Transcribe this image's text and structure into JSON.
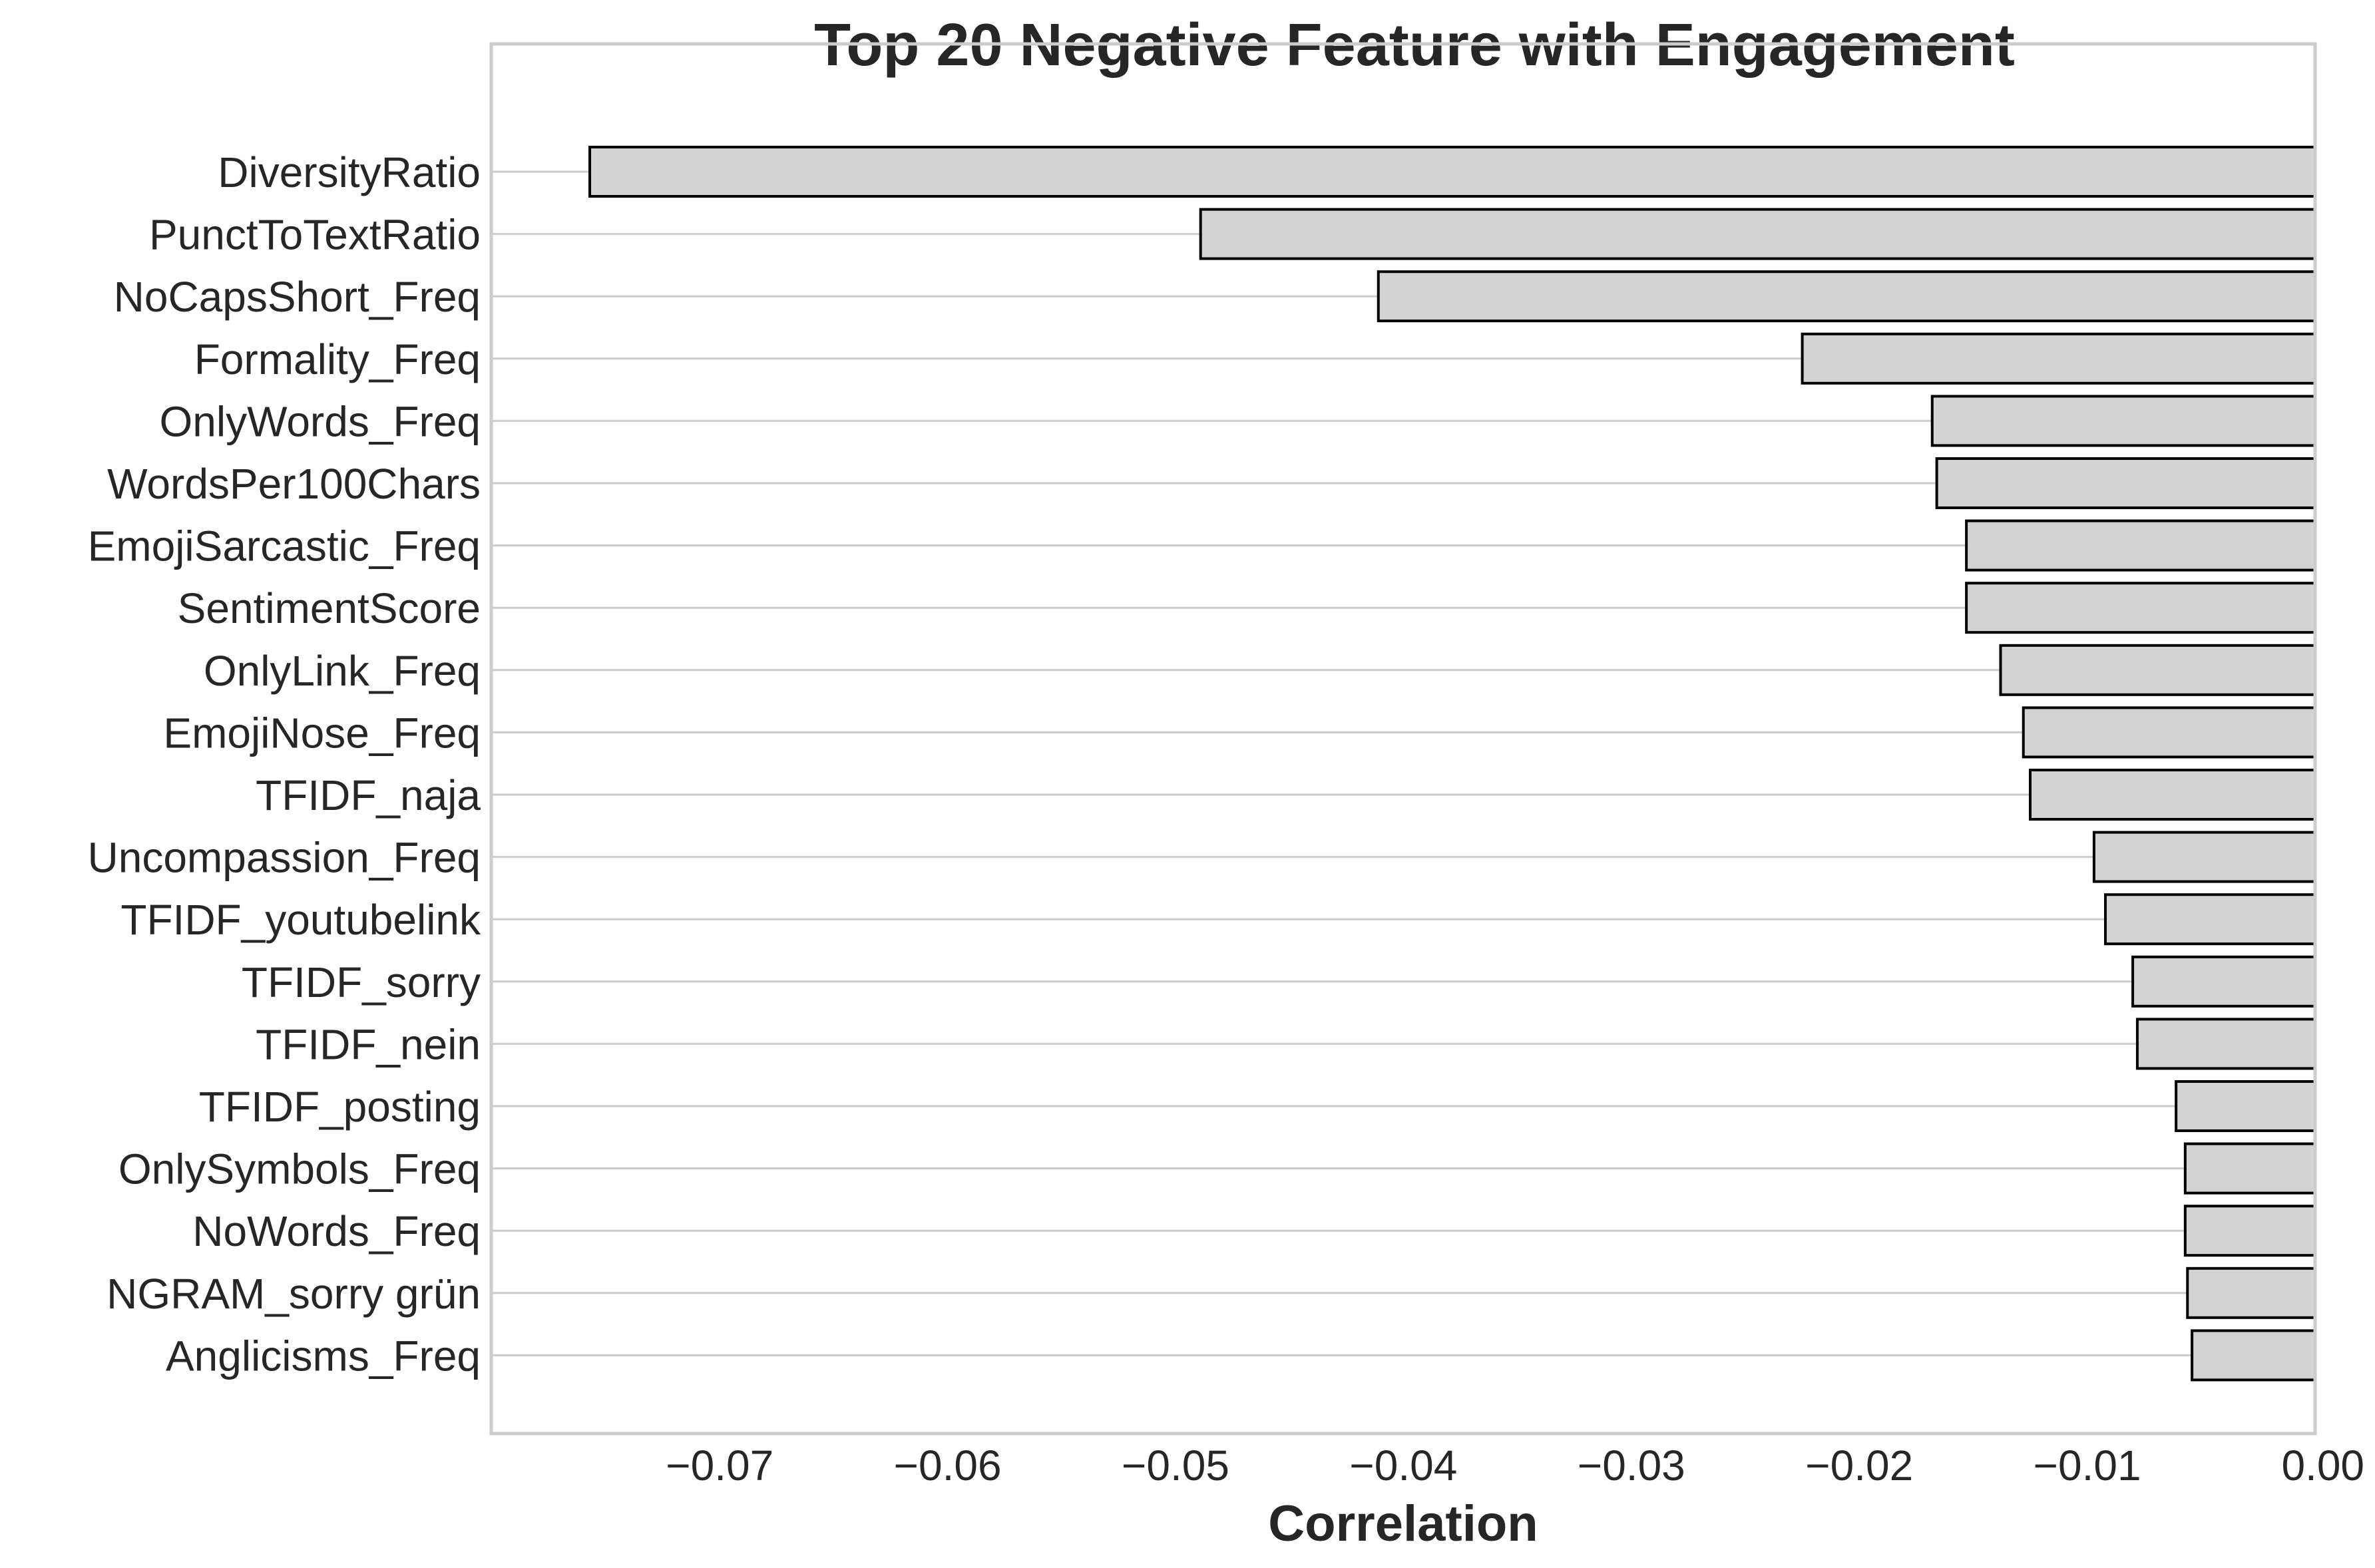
{
  "chart_data": {
    "type": "bar",
    "orientation": "horizontal",
    "title": "Top 20 Negative Feature with Engagement",
    "xlabel": "Correlation",
    "ylabel": "",
    "xlim": [
      -0.0795,
      0.0
    ],
    "xticks": [
      -0.07,
      -0.06,
      -0.05,
      -0.04,
      -0.03,
      -0.02,
      -0.01,
      0.0
    ],
    "xtick_labels": [
      "−0.07",
      "−0.06",
      "−0.05",
      "−0.04",
      "−0.03",
      "−0.02",
      "−0.01",
      "0.00"
    ],
    "grid": "horizontal",
    "bar_color": "#d3d3d3",
    "bar_edge_color": "#000000",
    "categories": [
      "DiversityRatio",
      "PunctToTextRatio",
      "NoCapsShort_Freq",
      "Formality_Freq",
      "OnlyWords_Freq",
      "WordsPer100Chars",
      "EmojiSarcastic_Freq",
      "SentimentScore",
      "OnlyLink_Freq",
      "EmojiNose_Freq",
      "TFIDF_naja",
      "Uncompassion_Freq",
      "TFIDF_youtubelink",
      "TFIDF_sorry",
      "TFIDF_nein",
      "TFIDF_posting",
      "OnlySymbols_Freq",
      "NoWords_Freq",
      "NGRAM_sorry grün",
      "Anglicisms_Freq"
    ],
    "values": [
      -0.0757,
      -0.0489,
      -0.0411,
      -0.0225,
      -0.0168,
      -0.0166,
      -0.0153,
      -0.0153,
      -0.0138,
      -0.0128,
      -0.0125,
      -0.0097,
      -0.0092,
      -0.008,
      -0.0078,
      -0.0061,
      -0.0057,
      -0.0057,
      -0.0056,
      -0.0054
    ]
  }
}
